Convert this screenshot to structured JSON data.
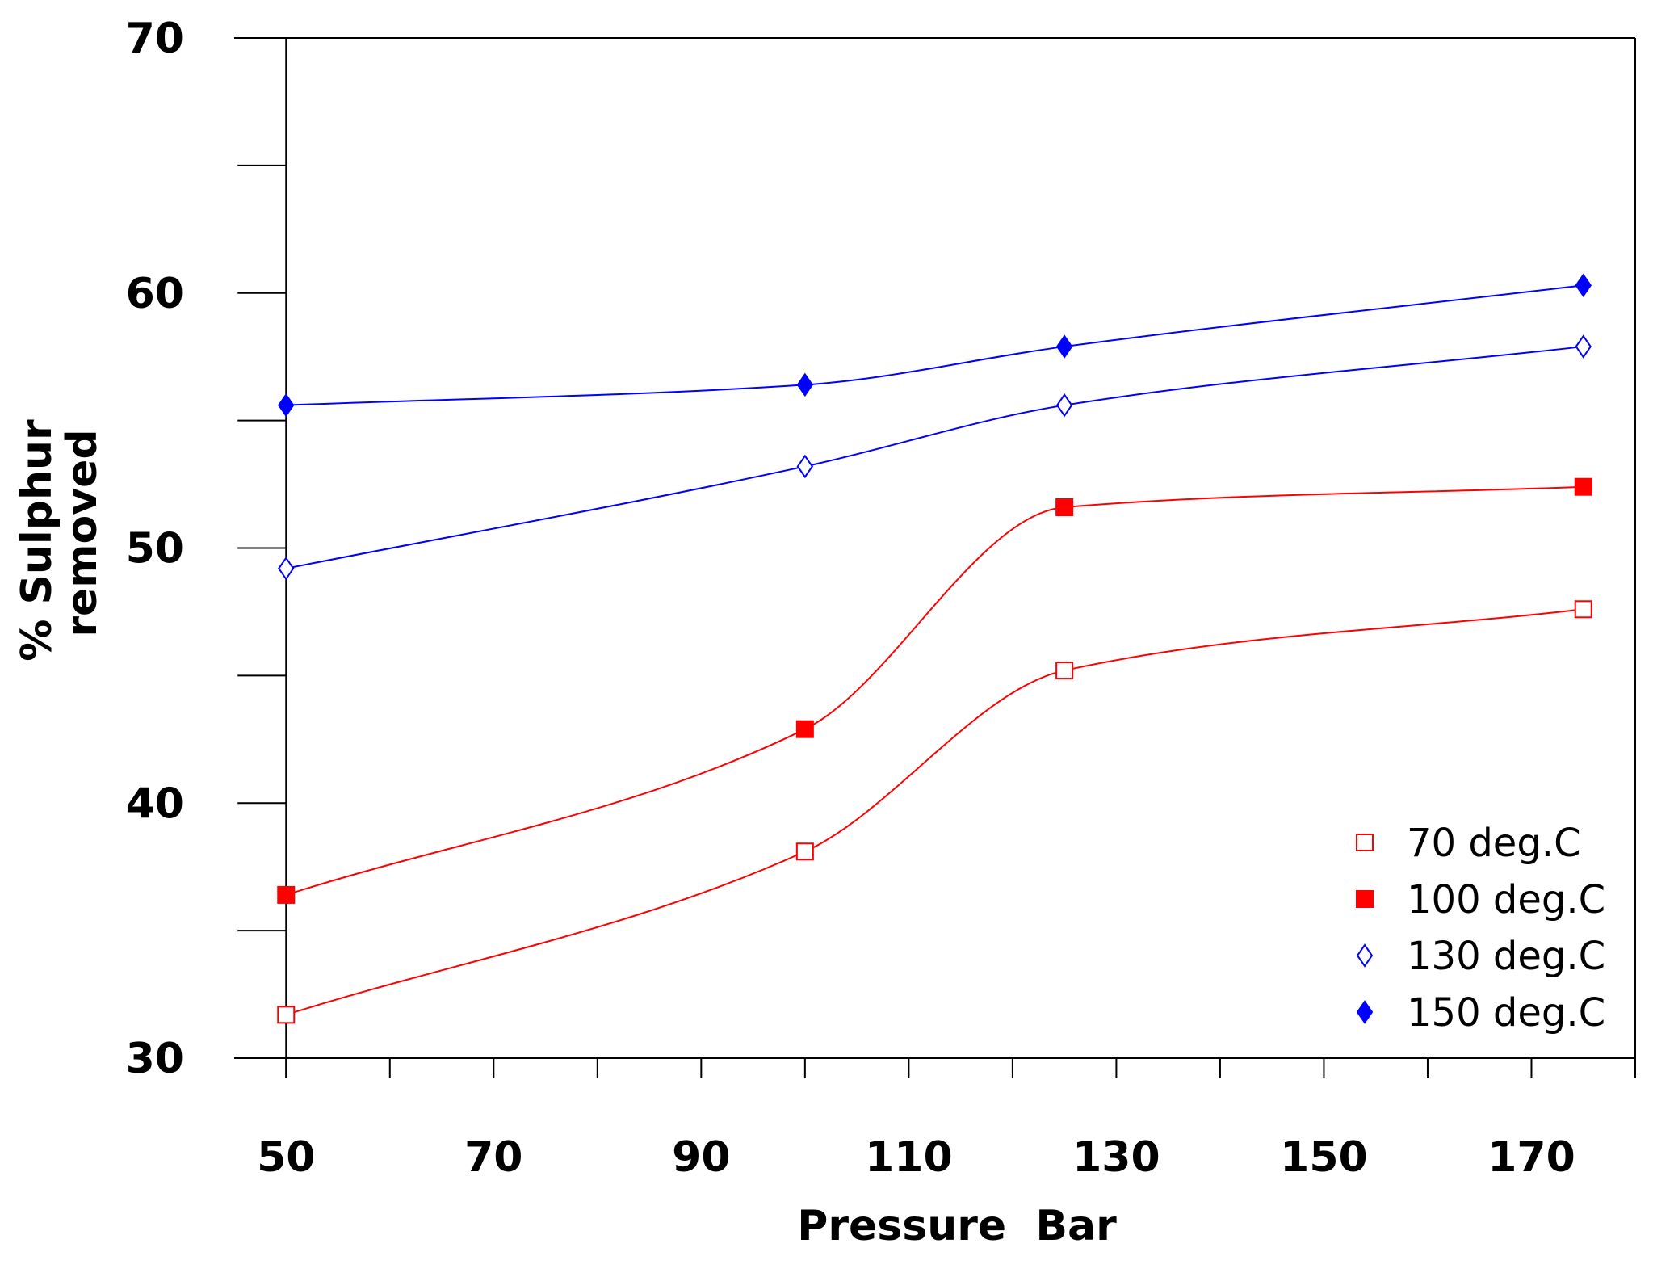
{
  "chart_data": {
    "type": "line",
    "title": "",
    "xlabel": "Pressure  Bar",
    "ylabel_lines": [
      "% Sulphur",
      "removed"
    ],
    "xlim": [
      45,
      180
    ],
    "ylim": [
      30,
      70
    ],
    "x_ticks": [
      50,
      70,
      90,
      110,
      130,
      150,
      170
    ],
    "x_tick_labels": [
      "50",
      "70",
      "90",
      "110",
      "130",
      "150",
      "170"
    ],
    "y_ticks": [
      30,
      40,
      50,
      60,
      70
    ],
    "y_tick_labels": [
      "30",
      "40",
      "50",
      "60",
      "70"
    ],
    "x_minor_step": 10,
    "y_minor_step": 5,
    "grid": false,
    "legend_position": "bottom-right",
    "series": [
      {
        "name": "70  deg.C",
        "marker": "square-open",
        "color": "#ff0000",
        "x": [
          50,
          100,
          125,
          175
        ],
        "y": [
          31.7,
          38.1,
          45.2,
          47.6
        ]
      },
      {
        "name": "100  deg.C",
        "marker": "square-filled",
        "color": "#ff0000",
        "x": [
          50,
          100,
          125,
          175
        ],
        "y": [
          36.4,
          42.9,
          51.6,
          52.4
        ]
      },
      {
        "name": "130  deg.C",
        "marker": "diamond-open",
        "color": "#0000ff",
        "x": [
          50,
          100,
          125,
          175
        ],
        "y": [
          49.2,
          53.2,
          55.6,
          57.9
        ]
      },
      {
        "name": "150  deg.C",
        "marker": "diamond-filled",
        "color": "#0000ff",
        "x": [
          50,
          100,
          125,
          175
        ],
        "y": [
          55.6,
          56.4,
          57.9,
          60.3
        ]
      }
    ]
  }
}
